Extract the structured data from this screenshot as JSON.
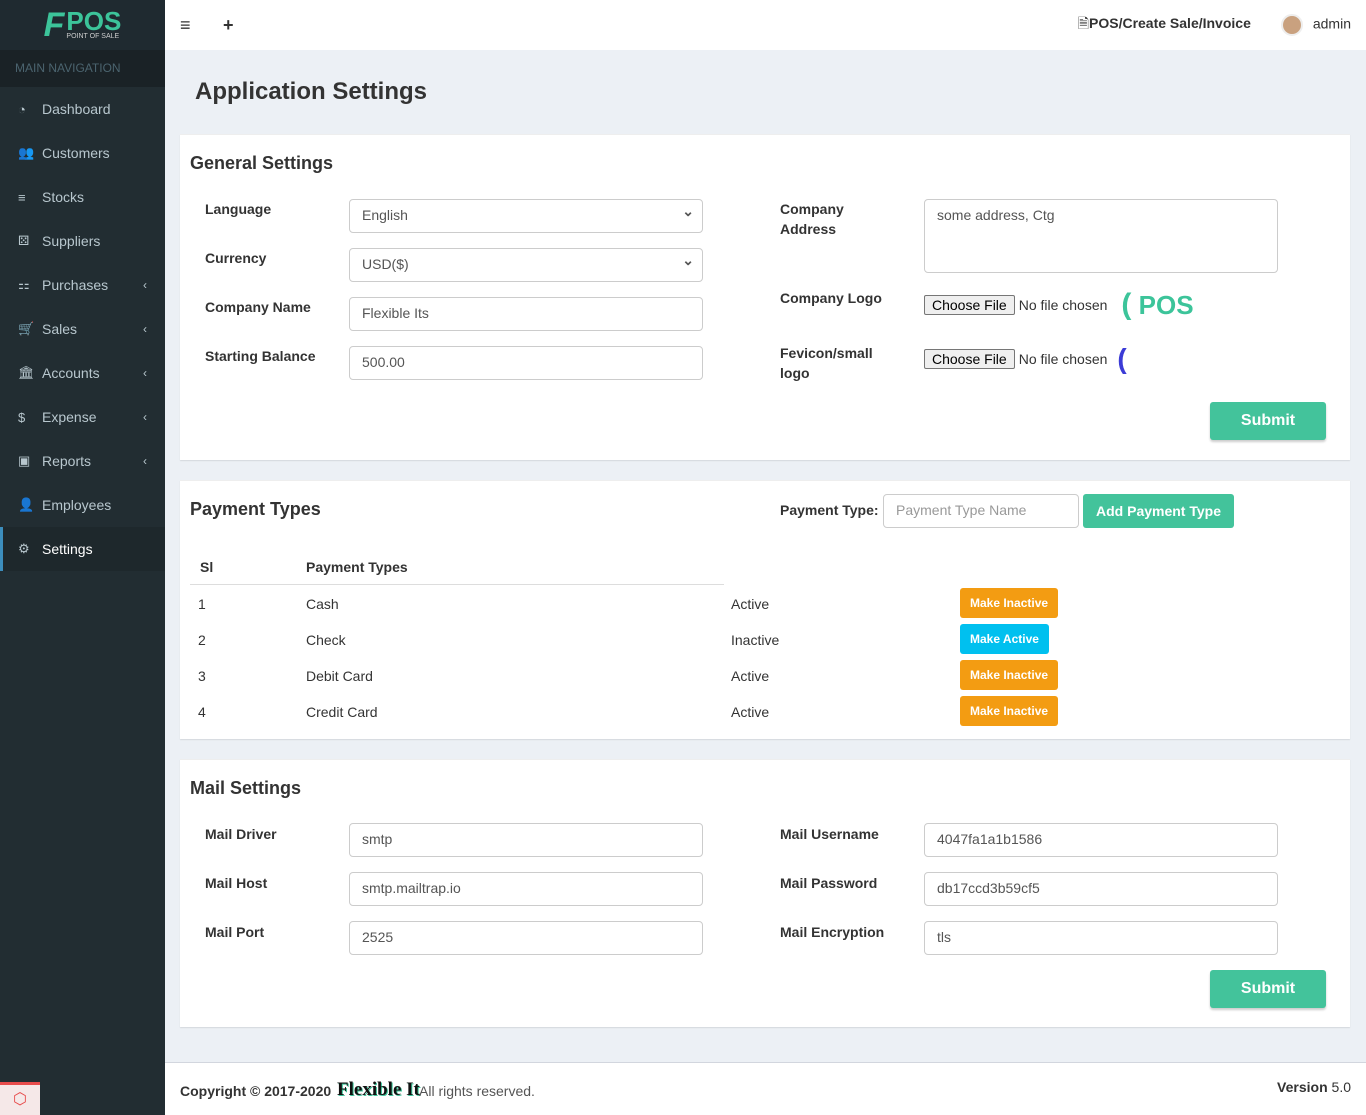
{
  "logo": {
    "text": "POS",
    "sub": "POINT OF SALE"
  },
  "sidebar": {
    "header": "MAIN NAVIGATION",
    "items": [
      {
        "label": "Dashboard",
        "icon": "dashboard-icon",
        "glyph": "◔"
      },
      {
        "label": "Customers",
        "icon": "users-icon",
        "glyph": "👥"
      },
      {
        "label": "Stocks",
        "icon": "list-icon",
        "glyph": "≡"
      },
      {
        "label": "Suppliers",
        "icon": "cubes-icon",
        "glyph": "⚄"
      },
      {
        "label": "Purchases",
        "icon": "sitemap-icon",
        "glyph": "⚏",
        "chev": "‹"
      },
      {
        "label": "Sales",
        "icon": "cart-icon",
        "glyph": "🛒",
        "chev": "‹"
      },
      {
        "label": "Accounts",
        "icon": "bank-icon",
        "glyph": "🏛",
        "chev": "‹"
      },
      {
        "label": "Expense",
        "icon": "dollar-icon",
        "glyph": "$",
        "chev": "‹"
      },
      {
        "label": "Reports",
        "icon": "money-icon",
        "glyph": "▣",
        "chev": "‹"
      },
      {
        "label": "Employees",
        "icon": "user-icon",
        "glyph": "👤"
      },
      {
        "label": "Settings",
        "icon": "gear-icon",
        "glyph": "⚙"
      }
    ]
  },
  "topbar": {
    "menu": "≡",
    "add": "+",
    "breadcrumb": "POS/Create Sale/Invoice",
    "user": "admin"
  },
  "page_title": "Application Settings",
  "general": {
    "title": "General Settings",
    "language": {
      "label": "Language",
      "value": "English"
    },
    "currency": {
      "label": "Currency",
      "value": "USD($)"
    },
    "company_name": {
      "label": "Company Name",
      "value": "Flexible Its"
    },
    "starting_balance": {
      "label": "Starting Balance",
      "value": "500.00"
    },
    "company_address": {
      "label": "Company Address",
      "value": "some address, Ctg"
    },
    "company_logo": {
      "label": "Company Logo",
      "button": "Choose File",
      "status": "No file chosen",
      "preview": "POS"
    },
    "favicon": {
      "label": "Fevicon/small logo",
      "button": "Choose File",
      "status": "No file chosen"
    },
    "submit": "Submit"
  },
  "payment": {
    "title": "Payment Types",
    "field_label": "Payment Type:",
    "placeholder": "Payment Type Name",
    "add_button": "Add Payment Type",
    "columns": [
      "Sl",
      "Payment Types"
    ],
    "rows": [
      {
        "sl": "1",
        "name": "Cash",
        "status": "Active",
        "action": "Make Inactive"
      },
      {
        "sl": "2",
        "name": "Check",
        "status": "Inactive",
        "action": "Make Active"
      },
      {
        "sl": "3",
        "name": "Debit Card",
        "status": "Active",
        "action": "Make Inactive"
      },
      {
        "sl": "4",
        "name": "Credit Card",
        "status": "Active",
        "action": "Make Inactive"
      }
    ]
  },
  "mail": {
    "title": "Mail Settings",
    "driver": {
      "label": "Mail Driver",
      "value": "smtp"
    },
    "host": {
      "label": "Mail Host",
      "value": "smtp.mailtrap.io"
    },
    "port": {
      "label": "Mail Port",
      "value": "2525"
    },
    "username": {
      "label": "Mail Username",
      "value": "4047fa1a1b1586"
    },
    "password": {
      "label": "Mail Password",
      "value": "db17ccd3b59cf5"
    },
    "encryption": {
      "label": "Mail Encryption",
      "value": "tls"
    },
    "submit": "Submit"
  },
  "footer": {
    "copyright": "Copyright © 2017-2020",
    "brand": "Flexible It",
    "rights": "All rights reserved.",
    "version_label": "Version",
    "version": "5.0"
  }
}
